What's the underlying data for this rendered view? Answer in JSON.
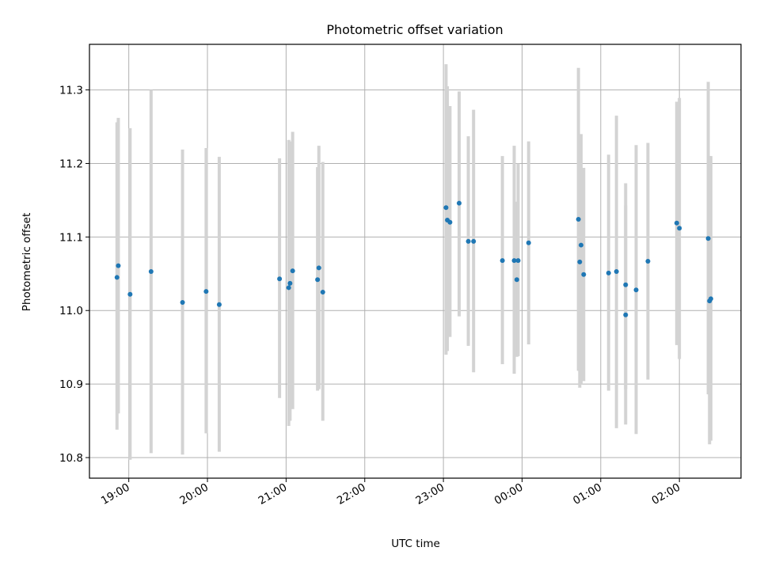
{
  "chart_data": {
    "type": "scatter",
    "title": "Photometric offset variation",
    "xlabel": "UTC time",
    "ylabel": "Photometric offset",
    "x_axis": "time",
    "xlim": [
      "18:30",
      "02:47"
    ],
    "ylim": [
      10.772,
      11.362
    ],
    "xticks": [
      "19:00",
      "20:00",
      "21:00",
      "22:00",
      "23:00",
      "00:00",
      "01:00",
      "02:00"
    ],
    "yticks": [
      10.8,
      10.9,
      11.0,
      11.1,
      11.2,
      11.3
    ],
    "grid": true,
    "colors": {
      "point": "#1f77b4",
      "errorbar": "#d3d3d3"
    },
    "points": [
      {
        "t": "18:51",
        "y": 11.045,
        "lo": 10.838,
        "hi": 11.256
      },
      {
        "t": "18:52",
        "y": 11.061,
        "lo": 10.86,
        "hi": 11.262
      },
      {
        "t": "19:01",
        "y": 11.022,
        "lo": 10.797,
        "hi": 11.248
      },
      {
        "t": "19:17",
        "y": 11.053,
        "lo": 10.806,
        "hi": 11.3
      },
      {
        "t": "19:41",
        "y": 11.011,
        "lo": 10.804,
        "hi": 11.219
      },
      {
        "t": "19:59",
        "y": 11.026,
        "lo": 10.833,
        "hi": 11.221
      },
      {
        "t": "20:09",
        "y": 11.008,
        "lo": 10.808,
        "hi": 11.209
      },
      {
        "t": "20:55",
        "y": 11.043,
        "lo": 10.881,
        "hi": 11.207
      },
      {
        "t": "21:02",
        "y": 11.031,
        "lo": 10.843,
        "hi": 11.232
      },
      {
        "t": "21:03",
        "y": 11.037,
        "lo": 10.85,
        "hi": 11.23
      },
      {
        "t": "21:05",
        "y": 11.054,
        "lo": 10.866,
        "hi": 11.243
      },
      {
        "t": "21:24",
        "y": 11.042,
        "lo": 10.891,
        "hi": 11.195
      },
      {
        "t": "21:25",
        "y": 11.058,
        "lo": 10.893,
        "hi": 11.224
      },
      {
        "t": "21:28",
        "y": 11.025,
        "lo": 10.85,
        "hi": 11.202
      },
      {
        "t": "23:02",
        "y": 11.14,
        "lo": 10.94,
        "hi": 11.335
      },
      {
        "t": "23:03",
        "y": 11.123,
        "lo": 10.945,
        "hi": 11.305
      },
      {
        "t": "23:05",
        "y": 11.12,
        "lo": 10.964,
        "hi": 11.278
      },
      {
        "t": "23:12",
        "y": 11.146,
        "lo": 10.992,
        "hi": 11.298
      },
      {
        "t": "23:19",
        "y": 11.094,
        "lo": 10.952,
        "hi": 11.237
      },
      {
        "t": "23:23",
        "y": 11.094,
        "lo": 10.916,
        "hi": 11.273
      },
      {
        "t": "23:45",
        "y": 11.068,
        "lo": 10.927,
        "hi": 11.21
      },
      {
        "t": "23:54",
        "y": 11.068,
        "lo": 10.914,
        "hi": 11.224
      },
      {
        "t": "23:56",
        "y": 11.042,
        "lo": 10.937,
        "hi": 11.148
      },
      {
        "t": "23:57",
        "y": 11.068,
        "lo": 10.938,
        "hi": 11.2
      },
      {
        "t": "00:05",
        "y": 11.092,
        "lo": 10.954,
        "hi": 11.23
      },
      {
        "t": "00:43",
        "y": 11.124,
        "lo": 10.918,
        "hi": 11.33
      },
      {
        "t": "00:44",
        "y": 11.066,
        "lo": 10.895,
        "hi": 11.24
      },
      {
        "t": "00:45",
        "y": 11.089,
        "lo": 10.899,
        "hi": 11.24
      },
      {
        "t": "00:47",
        "y": 11.049,
        "lo": 10.904,
        "hi": 11.194
      },
      {
        "t": "01:06",
        "y": 11.051,
        "lo": 10.891,
        "hi": 11.212
      },
      {
        "t": "01:12",
        "y": 11.053,
        "lo": 10.84,
        "hi": 11.265
      },
      {
        "t": "01:19",
        "y": 11.035,
        "lo": 10.893,
        "hi": 11.173
      },
      {
        "t": "01:19",
        "y": 10.994,
        "lo": 10.845,
        "hi": 11.143
      },
      {
        "t": "01:27",
        "y": 11.028,
        "lo": 10.832,
        "hi": 11.225
      },
      {
        "t": "01:36",
        "y": 11.067,
        "lo": 10.906,
        "hi": 11.228
      },
      {
        "t": "01:58",
        "y": 11.119,
        "lo": 10.953,
        "hi": 11.284
      },
      {
        "t": "02:00",
        "y": 11.112,
        "lo": 10.934,
        "hi": 11.289
      },
      {
        "t": "02:22",
        "y": 11.098,
        "lo": 10.886,
        "hi": 11.311
      },
      {
        "t": "02:23",
        "y": 11.013,
        "lo": 10.818,
        "hi": 11.21
      },
      {
        "t": "02:24",
        "y": 11.016,
        "lo": 10.823,
        "hi": 11.21
      }
    ]
  }
}
